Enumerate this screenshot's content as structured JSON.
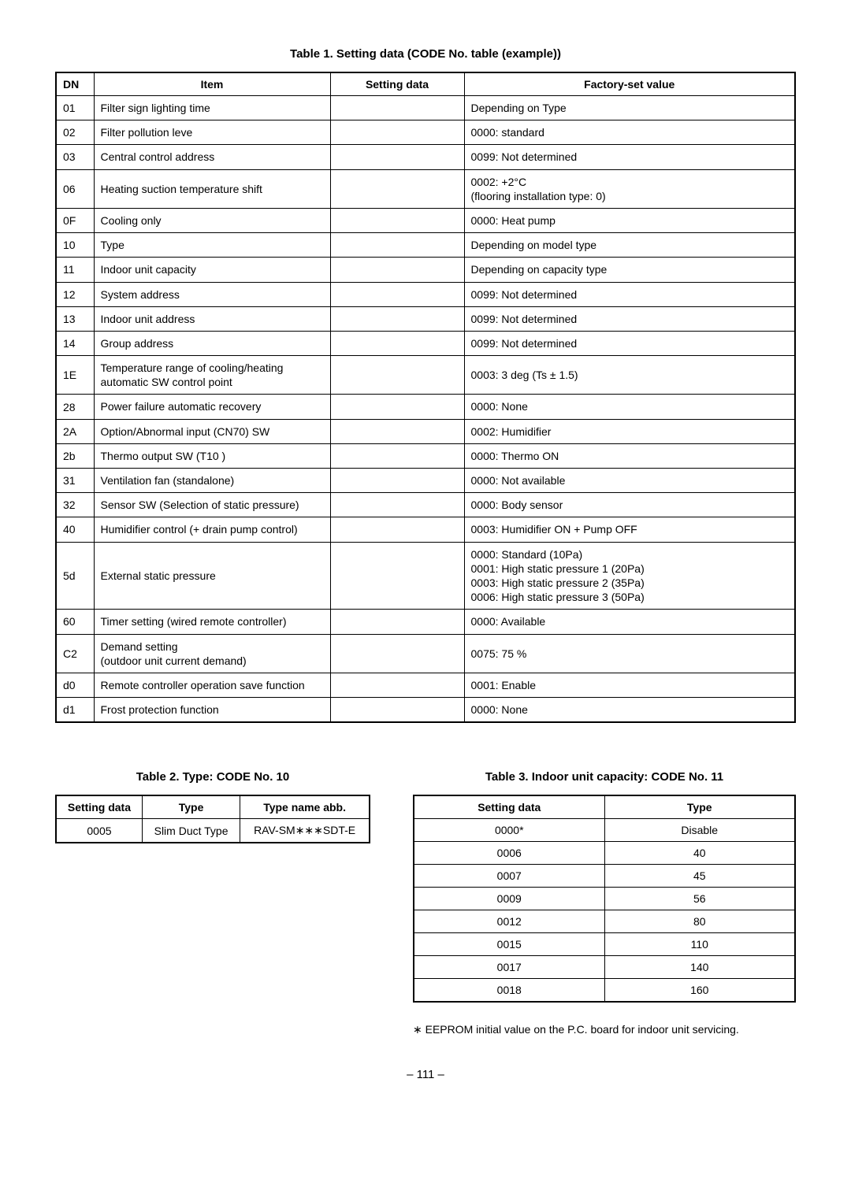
{
  "table1": {
    "title": "Table 1. Setting data (CODE No. table (example))",
    "headers": {
      "dn": "DN",
      "item": "Item",
      "sd": "Setting data",
      "fv": "Factory-set value"
    },
    "rows": [
      {
        "dn": "01",
        "item": "Filter sign lighting time",
        "sd": "",
        "fv": "Depending on Type"
      },
      {
        "dn": "02",
        "item": "Filter pollution leve",
        "sd": "",
        "fv": "0000: standard"
      },
      {
        "dn": "03",
        "item": "Central control address",
        "sd": "",
        "fv": "0099: Not determined"
      },
      {
        "dn": "06",
        "item": "Heating suction temperature shift",
        "sd": "",
        "fv": "0002: +2°C\n(flooring installation type: 0)"
      },
      {
        "dn": "0F",
        "item": "Cooling only",
        "sd": "",
        "fv": "0000: Heat pump"
      },
      {
        "dn": "10",
        "item": "Type",
        "sd": "",
        "fv": "Depending on model type"
      },
      {
        "dn": "11",
        "item": "Indoor unit capacity",
        "sd": "",
        "fv": "Depending on capacity type"
      },
      {
        "dn": "12",
        "item": "System address",
        "sd": "",
        "fv": "0099: Not determined"
      },
      {
        "dn": "13",
        "item": "Indoor unit address",
        "sd": "",
        "fv": "0099: Not determined"
      },
      {
        "dn": "14",
        "item": "Group address",
        "sd": "",
        "fv": "0099: Not determined"
      },
      {
        "dn": "1E",
        "item": "Temperature range of cooling/heating\nautomatic SW control point",
        "sd": "",
        "fv": "0003: 3 deg (Ts ± 1.5)"
      },
      {
        "dn": "28",
        "item": "Power failure automatic recovery",
        "sd": "",
        "fv": "0000: None"
      },
      {
        "dn": "2A",
        "item": "Option/Abnormal input (CN70) SW",
        "sd": "",
        "fv": "0002: Humidifier"
      },
      {
        "dn": "2b",
        "item": "Thermo output SW (T10       )",
        "sd": "",
        "fv": "0000: Thermo ON"
      },
      {
        "dn": "31",
        "item": "Ventilation fan (standalone)",
        "sd": "",
        "fv": "0000: Not available"
      },
      {
        "dn": "32",
        "item": "Sensor SW (Selection of static pressure)",
        "sd": "",
        "fv": "0000: Body sensor"
      },
      {
        "dn": "40",
        "item": "Humidifier control (+ drain pump control)",
        "sd": "",
        "fv": "0003: Humidifier ON + Pump OFF"
      },
      {
        "dn": "5d",
        "item": "External static pressure",
        "sd": "",
        "fv": "0000: Standard (10Pa)\n0001: High static pressure 1 (20Pa)\n0003: High static pressure 2 (35Pa)\n0006: High static pressure 3 (50Pa)"
      },
      {
        "dn": "60",
        "item": "Timer setting (wired remote controller)",
        "sd": "",
        "fv": "0000: Available"
      },
      {
        "dn": "C2",
        "item": " Demand setting\n(outdoor unit current demand)",
        "sd": "",
        "fv": "0075: 75 %"
      },
      {
        "dn": "d0",
        "item": "Remote controller operation save function",
        "sd": "",
        "fv": "0001: Enable"
      },
      {
        "dn": "d1",
        "item": "Frost protection function",
        "sd": "",
        "fv": "0000: None"
      }
    ]
  },
  "table2": {
    "title": "Table 2.  Type: CODE No. 10",
    "headers": {
      "sd": "Setting data",
      "type": "Type",
      "abb": "Type name abb."
    },
    "rows": [
      {
        "sd": "0005",
        "type": "Slim Duct Type",
        "abb": "RAV-SM∗∗∗SDT-E"
      }
    ]
  },
  "table3": {
    "title": "Table 3.  Indoor unit capacity: CODE No. 11",
    "headers": {
      "sd": "Setting data",
      "type": "Type"
    },
    "rows": [
      {
        "sd": "0000*",
        "type": "Disable"
      },
      {
        "sd": "0006",
        "type": "40"
      },
      {
        "sd": "0007",
        "type": "45"
      },
      {
        "sd": "0009",
        "type": "56"
      },
      {
        "sd": "0012",
        "type": "80"
      },
      {
        "sd": "0015",
        "type": "110"
      },
      {
        "sd": "0017",
        "type": "140"
      },
      {
        "sd": "0018",
        "type": "160"
      }
    ]
  },
  "footnote": "∗ EEPROM initial value on the P.C. board for indoor unit servicing.",
  "pagenum": "– 111 –"
}
